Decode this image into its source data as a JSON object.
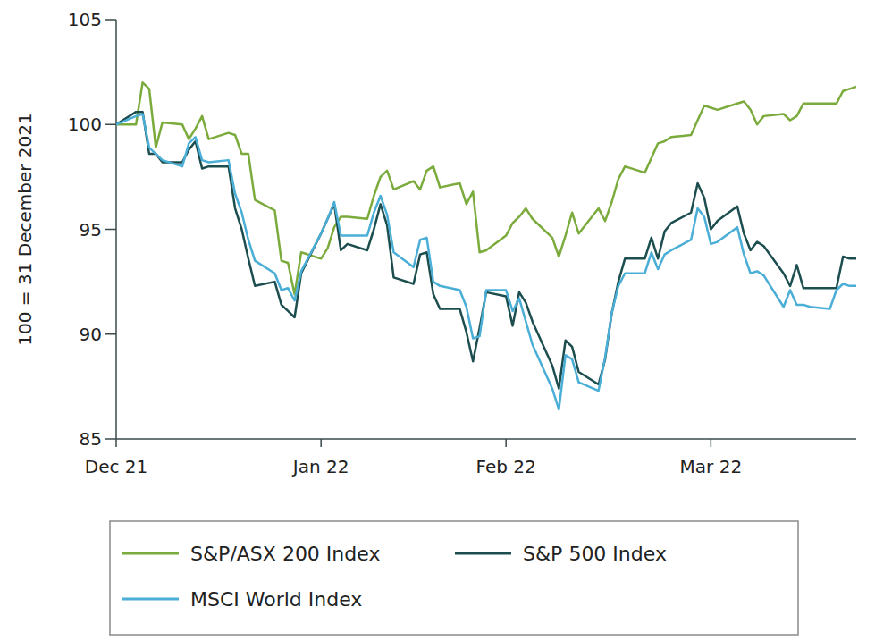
{
  "chart_data": {
    "type": "line",
    "ylabel": "100 = 31 December 2021",
    "x": [
      0,
      3,
      4,
      5,
      6,
      7,
      10,
      11,
      12,
      13,
      14,
      17,
      18,
      19,
      20,
      21,
      24,
      25,
      26,
      27,
      28,
      31,
      32,
      33,
      34,
      35,
      38,
      39,
      40,
      41,
      42,
      45,
      46,
      47,
      48,
      49,
      52,
      53,
      54,
      55,
      56,
      59,
      60,
      61,
      62,
      63,
      66,
      67,
      68,
      69,
      70,
      73,
      74,
      75,
      76,
      77,
      80,
      81,
      82,
      83,
      84,
      87,
      88,
      89,
      90,
      91,
      94,
      95,
      96,
      97,
      98,
      101,
      102,
      103,
      104,
      105,
      108,
      109,
      110,
      111,
      112
    ],
    "xlim": [
      0,
      112
    ],
    "xticks": [
      {
        "value": 0,
        "label": "Dec 21"
      },
      {
        "value": 31,
        "label": "Jan 22"
      },
      {
        "value": 59,
        "label": "Feb 22"
      },
      {
        "value": 90,
        "label": "Mar 22"
      }
    ],
    "ylim": [
      85,
      105
    ],
    "yticks": [
      85,
      90,
      95,
      100,
      105
    ],
    "grid": false,
    "legend": "bottom",
    "series": [
      {
        "name": "S&P/ASX 200 Index",
        "color": "#7bab3c",
        "values": [
          100.0,
          100.0,
          102.0,
          101.7,
          98.9,
          100.1,
          100.0,
          99.3,
          99.8,
          100.4,
          99.3,
          99.6,
          99.5,
          98.6,
          98.6,
          96.4,
          95.9,
          93.5,
          93.4,
          91.9,
          93.9,
          93.6,
          94.1,
          95.1,
          95.6,
          95.6,
          95.5,
          96.6,
          97.5,
          97.8,
          96.9,
          97.3,
          96.9,
          97.8,
          98.0,
          97.0,
          97.2,
          96.2,
          96.8,
          93.9,
          94.0,
          94.7,
          95.3,
          95.6,
          96.0,
          95.5,
          94.6,
          93.7,
          94.7,
          95.8,
          94.8,
          96.0,
          95.4,
          96.3,
          97.4,
          98.0,
          97.7,
          98.4,
          99.1,
          99.2,
          99.4,
          99.5,
          100.2,
          100.9,
          100.8,
          100.7,
          101.0,
          101.1,
          100.7,
          100.0,
          100.4,
          100.5,
          100.2,
          100.4,
          101.0,
          101.0,
          101.0,
          101.0,
          101.6,
          101.7,
          101.8
        ]
      },
      {
        "name": "S&P 500 Index",
        "color": "#1d4e4f",
        "values": [
          100.0,
          100.6,
          100.6,
          98.6,
          98.6,
          98.2,
          98.2,
          98.8,
          99.2,
          97.9,
          98.0,
          98.0,
          96.0,
          95.0,
          93.6,
          92.3,
          92.5,
          91.4,
          91.1,
          90.8,
          92.9,
          94.8,
          95.5,
          96.2,
          94.0,
          94.3,
          94.0,
          95.0,
          96.2,
          95.2,
          92.7,
          92.4,
          93.8,
          93.9,
          91.9,
          91.2,
          91.2,
          90.1,
          88.7,
          90.3,
          92.0,
          91.8,
          90.4,
          92.0,
          91.5,
          90.6,
          88.5,
          87.4,
          89.7,
          89.4,
          88.2,
          87.6,
          88.8,
          91.0,
          92.5,
          93.6,
          93.6,
          94.6,
          93.6,
          94.9,
          95.3,
          95.8,
          97.2,
          96.5,
          95.0,
          95.4,
          96.1,
          94.8,
          94.0,
          94.4,
          94.2,
          92.9,
          92.3,
          93.3,
          92.2,
          92.2,
          92.2,
          92.2,
          93.7,
          93.6,
          93.6
        ]
      },
      {
        "name": "MSCI World Index",
        "color": "#4aaed6",
        "values": [
          100.0,
          100.4,
          100.5,
          98.9,
          98.6,
          98.3,
          98.0,
          99.1,
          99.4,
          98.3,
          98.2,
          98.3,
          96.7,
          95.8,
          94.5,
          93.5,
          92.9,
          92.1,
          92.2,
          91.6,
          93.0,
          94.8,
          95.5,
          96.3,
          94.7,
          94.7,
          94.7,
          95.8,
          96.6,
          95.7,
          93.9,
          93.2,
          94.5,
          94.6,
          92.5,
          92.3,
          92.1,
          91.3,
          89.8,
          89.9,
          92.1,
          92.1,
          91.1,
          91.7,
          90.6,
          89.5,
          87.4,
          86.4,
          89.0,
          88.8,
          87.7,
          87.3,
          88.9,
          91.0,
          92.3,
          92.9,
          92.9,
          93.9,
          93.1,
          93.8,
          94.0,
          94.5,
          96.0,
          95.6,
          94.3,
          94.4,
          95.1,
          93.8,
          92.9,
          93.0,
          92.8,
          91.3,
          92.1,
          91.4,
          91.4,
          91.3,
          91.2,
          92.1,
          92.4,
          92.3,
          92.3
        ]
      }
    ]
  }
}
